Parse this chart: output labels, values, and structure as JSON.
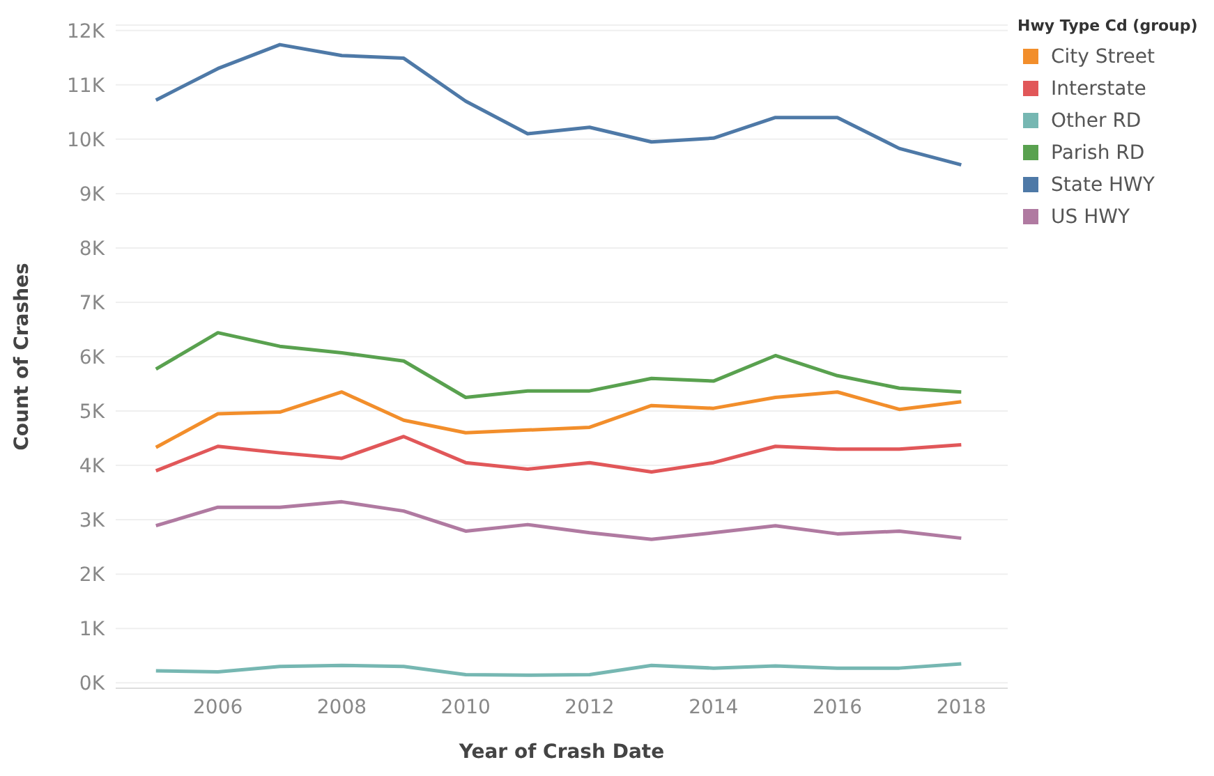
{
  "chart_data": {
    "type": "line",
    "xlabel": "Year of Crash Date",
    "ylabel": "Count of Crashes",
    "legend_title": "Hwy Type Cd (group)",
    "x": [
      2005,
      2006,
      2007,
      2008,
      2009,
      2010,
      2011,
      2012,
      2013,
      2014,
      2015,
      2016,
      2017,
      2018
    ],
    "series": [
      {
        "name": "City Street",
        "color": "#f28e2b",
        "values": [
          4330,
          4950,
          4980,
          5350,
          4830,
          4600,
          4650,
          4700,
          5100,
          5050,
          5250,
          5350,
          5030,
          5170
        ]
      },
      {
        "name": "Interstate",
        "color": "#e15759",
        "values": [
          3900,
          4350,
          4230,
          4130,
          4530,
          4050,
          3930,
          4050,
          3880,
          4050,
          4350,
          4300,
          4300,
          4380
        ]
      },
      {
        "name": "Other RD",
        "color": "#76b7b2",
        "values": [
          220,
          200,
          300,
          320,
          300,
          150,
          140,
          150,
          320,
          270,
          310,
          270,
          270,
          350
        ]
      },
      {
        "name": "Parish RD",
        "color": "#59a14f",
        "values": [
          5770,
          6440,
          6190,
          6070,
          5920,
          5250,
          5370,
          5370,
          5600,
          5550,
          6020,
          5650,
          5420,
          5350
        ]
      },
      {
        "name": "State HWY",
        "color": "#4e79a7",
        "values": [
          10720,
          11300,
          11740,
          11540,
          11490,
          10700,
          10100,
          10220,
          9950,
          10020,
          10400,
          10400,
          9830,
          9530
        ]
      },
      {
        "name": "US HWY",
        "color": "#b07aa1",
        "values": [
          2890,
          3230,
          3230,
          3330,
          3160,
          2790,
          2910,
          2760,
          2640,
          2760,
          2890,
          2740,
          2790,
          2660
        ]
      }
    ],
    "xlim": [
      2004.35,
      2018.75
    ],
    "xticks": [
      2006,
      2008,
      2010,
      2012,
      2014,
      2016,
      2018
    ],
    "ylim": [
      -100,
      12100
    ],
    "yticks": [
      {
        "value": 0,
        "label": "0K"
      },
      {
        "value": 1000,
        "label": "1K"
      },
      {
        "value": 2000,
        "label": "2K"
      },
      {
        "value": 3000,
        "label": "3K"
      },
      {
        "value": 4000,
        "label": "4K"
      },
      {
        "value": 5000,
        "label": "5K"
      },
      {
        "value": 6000,
        "label": "6K"
      },
      {
        "value": 7000,
        "label": "7K"
      },
      {
        "value": 8000,
        "label": "8K"
      },
      {
        "value": 9000,
        "label": "9K"
      },
      {
        "value": 10000,
        "label": "10K"
      },
      {
        "value": 11000,
        "label": "11K"
      },
      {
        "value": 12000,
        "label": "12K"
      }
    ],
    "grid": "y",
    "legend": "top right",
    "marker": "none",
    "line_style": "solid"
  }
}
